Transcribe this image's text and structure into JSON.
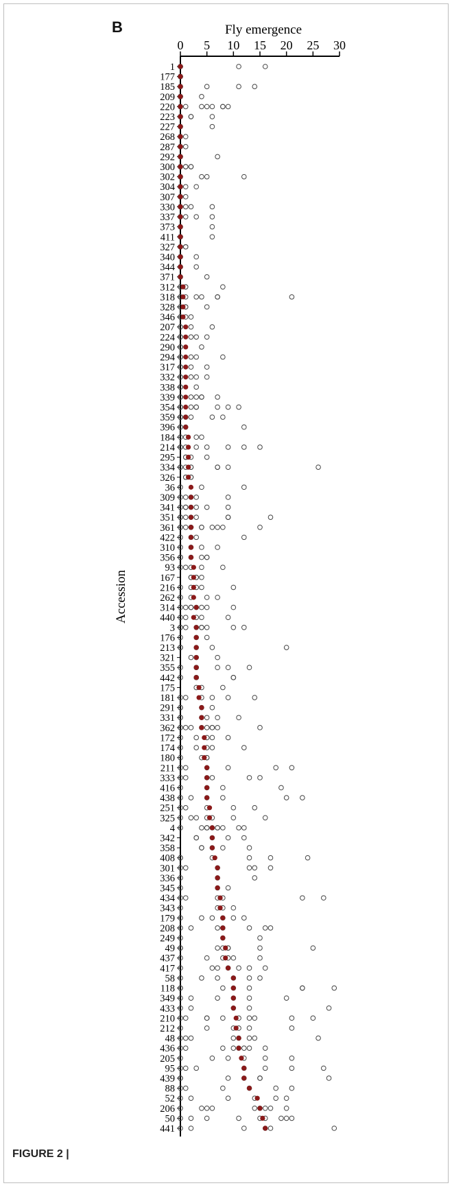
{
  "panel_label": "B",
  "caption": "FIGURE 2 |",
  "colors": {
    "mean_point": "#8b1a1a",
    "replicate_point": "#444444",
    "axis": "#000000"
  },
  "chart_data": {
    "type": "scatter",
    "orientation": "horizontal",
    "xlabel": "Fly emergence",
    "ylabel": "Accession",
    "xlim": [
      0,
      30
    ],
    "xticks": [
      0,
      5,
      10,
      15,
      20,
      25,
      30
    ],
    "x_axis_position": "top",
    "grid": false,
    "series_markers": {
      "replicate": "open circle",
      "mean": "filled circle"
    },
    "accessions": [
      {
        "label": "1",
        "reps": [
          0,
          0,
          0,
          0,
          11,
          16
        ],
        "mean": 0
      },
      {
        "label": "177",
        "reps": [
          0,
          0,
          0,
          0,
          0
        ],
        "mean": 0
      },
      {
        "label": "185",
        "reps": [
          0,
          0,
          0,
          5,
          11,
          14
        ],
        "mean": 0
      },
      {
        "label": "209",
        "reps": [
          0,
          0,
          0,
          0,
          4
        ],
        "mean": 0
      },
      {
        "label": "220",
        "reps": [
          0,
          0,
          0,
          1,
          4,
          5,
          6,
          8,
          8,
          9
        ],
        "mean": 0
      },
      {
        "label": "223",
        "reps": [
          0,
          0,
          0,
          2,
          2,
          6
        ],
        "mean": 0
      },
      {
        "label": "227",
        "reps": [
          0,
          0,
          0,
          6
        ],
        "mean": 0
      },
      {
        "label": "268",
        "reps": [
          0,
          0,
          0,
          1
        ],
        "mean": 0
      },
      {
        "label": "287",
        "reps": [
          0,
          0,
          0,
          1
        ],
        "mean": 0
      },
      {
        "label": "292",
        "reps": [
          0,
          0,
          0,
          7
        ],
        "mean": 0
      },
      {
        "label": "300",
        "reps": [
          0,
          0,
          0,
          1,
          1,
          2,
          2
        ],
        "mean": 0
      },
      {
        "label": "302",
        "reps": [
          0,
          0,
          0,
          4,
          5,
          12
        ],
        "mean": 0
      },
      {
        "label": "304",
        "reps": [
          0,
          0,
          0,
          1,
          3
        ],
        "mean": 0
      },
      {
        "label": "307",
        "reps": [
          0,
          0,
          0,
          1
        ],
        "mean": 0
      },
      {
        "label": "330",
        "reps": [
          0,
          0,
          0,
          1,
          2,
          6
        ],
        "mean": 0
      },
      {
        "label": "337",
        "reps": [
          0,
          0,
          0,
          1,
          3,
          6
        ],
        "mean": 0
      },
      {
        "label": "373",
        "reps": [
          0,
          0,
          0,
          6
        ],
        "mean": 0
      },
      {
        "label": "411",
        "reps": [
          0,
          0,
          0,
          6
        ],
        "mean": 0
      },
      {
        "label": "327",
        "reps": [
          0,
          0,
          0,
          1,
          1
        ],
        "mean": 0
      },
      {
        "label": "340",
        "reps": [
          0,
          0,
          0,
          3
        ],
        "mean": 0
      },
      {
        "label": "344",
        "reps": [
          0,
          0,
          0,
          3
        ],
        "mean": 0
      },
      {
        "label": "371",
        "reps": [
          0,
          0,
          0,
          5
        ],
        "mean": 0
      },
      {
        "label": "312",
        "reps": [
          0,
          0,
          1,
          1,
          8
        ],
        "mean": 0.5
      },
      {
        "label": "318",
        "reps": [
          0,
          0,
          0,
          1,
          3,
          4,
          7,
          7,
          21
        ],
        "mean": 0.5
      },
      {
        "label": "328",
        "reps": [
          0,
          0,
          1,
          1,
          5
        ],
        "mean": 0.5
      },
      {
        "label": "346",
        "reps": [
          0,
          0,
          1,
          2
        ],
        "mean": 0.5
      },
      {
        "label": "207",
        "reps": [
          0,
          0,
          2,
          6
        ],
        "mean": 1
      },
      {
        "label": "224",
        "reps": [
          0,
          0,
          2,
          3,
          5
        ],
        "mean": 1
      },
      {
        "label": "290",
        "reps": [
          0,
          0,
          4
        ],
        "mean": 1
      },
      {
        "label": "294",
        "reps": [
          0,
          0,
          2,
          3,
          8
        ],
        "mean": 1
      },
      {
        "label": "317",
        "reps": [
          0,
          0,
          2,
          5
        ],
        "mean": 1
      },
      {
        "label": "332",
        "reps": [
          0,
          0,
          2,
          3,
          5
        ],
        "mean": 1
      },
      {
        "label": "338",
        "reps": [
          0,
          0,
          3
        ],
        "mean": 1
      },
      {
        "label": "339",
        "reps": [
          0,
          0,
          0,
          2,
          3,
          4,
          4,
          7
        ],
        "mean": 1
      },
      {
        "label": "354",
        "reps": [
          0,
          0,
          0,
          2,
          3,
          3,
          7,
          9,
          11
        ],
        "mean": 1
      },
      {
        "label": "359",
        "reps": [
          0,
          0,
          0,
          1,
          2,
          6,
          8
        ],
        "mean": 1
      },
      {
        "label": "396",
        "reps": [
          0,
          0,
          1,
          12
        ],
        "mean": 1
      },
      {
        "label": "184",
        "reps": [
          0,
          1,
          3,
          4
        ],
        "mean": 1.5
      },
      {
        "label": "214",
        "reps": [
          0,
          0,
          1,
          3,
          5,
          9,
          12,
          15
        ],
        "mean": 1.5
      },
      {
        "label": "295",
        "reps": [
          1,
          1,
          2,
          5
        ],
        "mean": 1.5
      },
      {
        "label": "334",
        "reps": [
          0,
          0,
          1,
          2,
          2,
          7,
          7,
          9,
          26
        ],
        "mean": 1.5
      },
      {
        "label": "326",
        "reps": [
          1,
          1,
          2,
          2
        ],
        "mean": 1.5
      },
      {
        "label": "36",
        "reps": [
          0,
          4,
          12
        ],
        "mean": 2
      },
      {
        "label": "309",
        "reps": [
          0,
          1,
          2,
          3,
          9
        ],
        "mean": 2
      },
      {
        "label": "341",
        "reps": [
          0,
          1,
          1,
          2,
          3,
          5,
          9
        ],
        "mean": 2
      },
      {
        "label": "351",
        "reps": [
          0,
          0,
          1,
          2,
          3,
          9,
          9,
          17
        ],
        "mean": 2
      },
      {
        "label": "361",
        "reps": [
          0,
          0,
          1,
          2,
          2,
          4,
          4,
          6,
          7,
          8,
          15
        ],
        "mean": 2
      },
      {
        "label": "422",
        "reps": [
          0,
          2,
          3,
          12
        ],
        "mean": 2
      },
      {
        "label": "310",
        "reps": [
          0,
          2,
          4,
          7
        ],
        "mean": 2
      },
      {
        "label": "356",
        "reps": [
          0,
          0,
          2,
          4,
          5,
          5
        ],
        "mean": 2
      },
      {
        "label": "93",
        "reps": [
          0,
          1,
          2,
          4,
          8
        ],
        "mean": 2.5
      },
      {
        "label": "167",
        "reps": [
          2,
          2,
          3,
          3,
          4
        ],
        "mean": 2.5
      },
      {
        "label": "216",
        "reps": [
          0,
          2,
          3,
          4,
          10
        ],
        "mean": 2.5
      },
      {
        "label": "262",
        "reps": [
          0,
          2,
          5,
          7
        ],
        "mean": 2.5
      },
      {
        "label": "314",
        "reps": [
          0,
          1,
          2,
          2,
          3,
          4,
          5,
          10
        ],
        "mean": 3
      },
      {
        "label": "440",
        "reps": [
          0,
          1,
          3,
          4,
          9
        ],
        "mean": 2.5
      },
      {
        "label": "3",
        "reps": [
          0,
          0,
          1,
          3,
          4,
          4,
          5,
          10,
          12
        ],
        "mean": 3
      },
      {
        "label": "176",
        "reps": [
          0,
          3,
          5
        ],
        "mean": 3
      },
      {
        "label": "213",
        "reps": [
          0,
          0,
          3,
          6,
          20
        ],
        "mean": 3
      },
      {
        "label": "321",
        "reps": [
          2,
          3,
          7
        ],
        "mean": 3
      },
      {
        "label": "355",
        "reps": [
          0,
          3,
          3,
          7,
          9,
          13
        ],
        "mean": 3
      },
      {
        "label": "442",
        "reps": [
          0,
          3,
          3,
          10,
          10
        ],
        "mean": 3
      },
      {
        "label": "175",
        "reps": [
          3,
          4,
          8
        ],
        "mean": 3.5
      },
      {
        "label": "181",
        "reps": [
          0,
          1,
          4,
          6,
          9,
          14
        ],
        "mean": 3.5
      },
      {
        "label": "291",
        "reps": [
          0,
          0,
          4,
          6
        ],
        "mean": 4
      },
      {
        "label": "331",
        "reps": [
          0,
          0,
          4,
          5,
          7,
          11
        ],
        "mean": 4
      },
      {
        "label": "362",
        "reps": [
          0,
          0,
          1,
          2,
          4,
          5,
          6,
          6,
          7,
          15
        ],
        "mean": 4
      },
      {
        "label": "172",
        "reps": [
          0,
          3,
          5,
          6,
          9
        ],
        "mean": 4.5
      },
      {
        "label": "174",
        "reps": [
          0,
          3,
          5,
          6,
          12
        ],
        "mean": 4.5
      },
      {
        "label": "180",
        "reps": [
          0,
          4,
          5,
          5
        ],
        "mean": 4.5
      },
      {
        "label": "211",
        "reps": [
          0,
          1,
          5,
          9,
          18,
          21
        ],
        "mean": 5
      },
      {
        "label": "333",
        "reps": [
          0,
          1,
          5,
          6,
          13,
          15
        ],
        "mean": 5
      },
      {
        "label": "416",
        "reps": [
          0,
          5,
          8,
          19
        ],
        "mean": 5
      },
      {
        "label": "438",
        "reps": [
          0,
          2,
          5,
          8,
          20,
          23
        ],
        "mean": 5
      },
      {
        "label": "251",
        "reps": [
          0,
          1,
          5,
          10,
          14
        ],
        "mean": 5.5
      },
      {
        "label": "325",
        "reps": [
          0,
          2,
          3,
          5,
          6,
          10,
          16
        ],
        "mean": 5.5
      },
      {
        "label": "4",
        "reps": [
          0,
          4,
          5,
          5,
          6,
          7,
          7,
          8,
          11,
          12
        ],
        "mean": 6
      },
      {
        "label": "342",
        "reps": [
          3,
          3,
          6,
          9,
          12
        ],
        "mean": 6
      },
      {
        "label": "358",
        "reps": [
          4,
          4,
          6,
          8,
          13
        ],
        "mean": 6
      },
      {
        "label": "408",
        "reps": [
          0,
          0,
          6,
          13,
          17,
          24
        ],
        "mean": 6.5
      },
      {
        "label": "301",
        "reps": [
          0,
          1,
          7,
          13,
          14,
          17
        ],
        "mean": 7
      },
      {
        "label": "336",
        "reps": [
          0,
          7,
          14
        ],
        "mean": 7
      },
      {
        "label": "345",
        "reps": [
          0,
          7,
          9
        ],
        "mean": 7
      },
      {
        "label": "434",
        "reps": [
          0,
          1,
          7,
          8,
          23,
          27
        ],
        "mean": 7.5
      },
      {
        "label": "343",
        "reps": [
          0,
          7,
          8,
          10
        ],
        "mean": 7.5
      },
      {
        "label": "179",
        "reps": [
          0,
          4,
          6,
          8,
          10,
          12
        ],
        "mean": 8
      },
      {
        "label": "208",
        "reps": [
          0,
          2,
          7,
          8,
          13,
          16,
          17
        ],
        "mean": 8
      },
      {
        "label": "249",
        "reps": [
          0,
          8,
          15
        ],
        "mean": 8
      },
      {
        "label": "49",
        "reps": [
          0,
          0,
          7,
          8,
          9,
          9,
          15,
          25
        ],
        "mean": 8.5
      },
      {
        "label": "437",
        "reps": [
          0,
          5,
          8,
          9,
          10,
          15
        ],
        "mean": 8.5
      },
      {
        "label": "417",
        "reps": [
          0,
          6,
          7,
          9,
          11,
          13,
          16
        ],
        "mean": 9
      },
      {
        "label": "58",
        "reps": [
          0,
          4,
          7,
          10,
          13,
          15
        ],
        "mean": 10
      },
      {
        "label": "118",
        "reps": [
          0,
          0,
          8,
          10,
          13,
          23,
          23,
          29
        ],
        "mean": 10
      },
      {
        "label": "349",
        "reps": [
          0,
          2,
          7,
          10,
          13,
          20
        ],
        "mean": 10
      },
      {
        "label": "433",
        "reps": [
          0,
          2,
          10,
          13,
          28
        ],
        "mean": 10
      },
      {
        "label": "210",
        "reps": [
          0,
          1,
          5,
          5,
          8,
          11,
          13,
          14,
          21,
          25
        ],
        "mean": 10.5
      },
      {
        "label": "212",
        "reps": [
          0,
          5,
          10,
          11,
          13,
          21
        ],
        "mean": 10.5
      },
      {
        "label": "48",
        "reps": [
          0,
          1,
          2,
          10,
          11,
          13,
          14,
          26
        ],
        "mean": 11
      },
      {
        "label": "436",
        "reps": [
          0,
          1,
          8,
          10,
          11,
          12,
          13,
          16
        ],
        "mean": 11
      },
      {
        "label": "205",
        "reps": [
          0,
          6,
          9,
          12,
          16,
          21
        ],
        "mean": 11.5
      },
      {
        "label": "95",
        "reps": [
          0,
          1,
          3,
          12,
          16,
          21,
          27
        ],
        "mean": 12
      },
      {
        "label": "439",
        "reps": [
          0,
          0,
          9,
          12,
          15,
          15,
          28
        ],
        "mean": 12
      },
      {
        "label": "88",
        "reps": [
          0,
          1,
          8,
          13,
          18,
          21
        ],
        "mean": 13
      },
      {
        "label": "52",
        "reps": [
          0,
          2,
          9,
          14,
          18,
          20
        ],
        "mean": 14.5
      },
      {
        "label": "206",
        "reps": [
          0,
          4,
          5,
          6,
          14,
          15,
          16,
          17,
          20
        ],
        "mean": 15
      },
      {
        "label": "50",
        "reps": [
          0,
          2,
          5,
          11,
          15,
          16,
          19,
          20,
          21
        ],
        "mean": 15.5
      },
      {
        "label": "441",
        "reps": [
          0,
          2,
          12,
          16,
          17,
          29
        ],
        "mean": 16
      }
    ]
  }
}
